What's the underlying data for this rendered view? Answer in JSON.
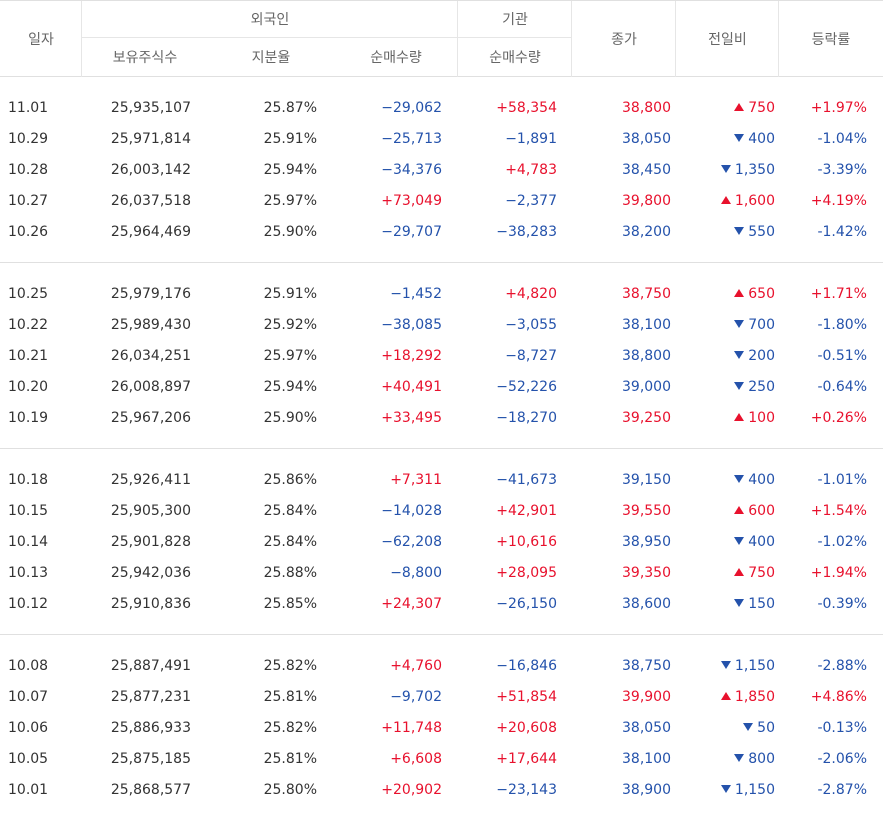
{
  "header": {
    "date": "일자",
    "foreign": "외국인",
    "institution": "기관",
    "holding": "보유주식수",
    "ratio": "지분율",
    "foreign_net": "순매수량",
    "inst_net": "순매수량",
    "close": "종가",
    "change": "전일비",
    "rate": "등락률"
  },
  "colors": {
    "up": "#e8112d",
    "down": "#2452ab"
  },
  "groups": [
    [
      {
        "date": "11.01",
        "hold": "25,935,107",
        "ratio": "25.87%",
        "fnet": "−29,062",
        "inst": "+58,354",
        "close": "38,800",
        "dir": "up",
        "chg": "750",
        "rate": "+1.97%"
      },
      {
        "date": "10.29",
        "hold": "25,971,814",
        "ratio": "25.91%",
        "fnet": "−25,713",
        "inst": "−1,891",
        "close": "38,050",
        "dir": "down",
        "chg": "400",
        "rate": "-1.04%"
      },
      {
        "date": "10.28",
        "hold": "26,003,142",
        "ratio": "25.94%",
        "fnet": "−34,376",
        "inst": "+4,783",
        "close": "38,450",
        "dir": "down",
        "chg": "1,350",
        "rate": "-3.39%"
      },
      {
        "date": "10.27",
        "hold": "26,037,518",
        "ratio": "25.97%",
        "fnet": "+73,049",
        "inst": "−2,377",
        "close": "39,800",
        "dir": "up",
        "chg": "1,600",
        "rate": "+4.19%"
      },
      {
        "date": "10.26",
        "hold": "25,964,469",
        "ratio": "25.90%",
        "fnet": "−29,707",
        "inst": "−38,283",
        "close": "38,200",
        "dir": "down",
        "chg": "550",
        "rate": "-1.42%"
      }
    ],
    [
      {
        "date": "10.25",
        "hold": "25,979,176",
        "ratio": "25.91%",
        "fnet": "−1,452",
        "inst": "+4,820",
        "close": "38,750",
        "dir": "up",
        "chg": "650",
        "rate": "+1.71%"
      },
      {
        "date": "10.22",
        "hold": "25,989,430",
        "ratio": "25.92%",
        "fnet": "−38,085",
        "inst": "−3,055",
        "close": "38,100",
        "dir": "down",
        "chg": "700",
        "rate": "-1.80%"
      },
      {
        "date": "10.21",
        "hold": "26,034,251",
        "ratio": "25.97%",
        "fnet": "+18,292",
        "inst": "−8,727",
        "close": "38,800",
        "dir": "down",
        "chg": "200",
        "rate": "-0.51%"
      },
      {
        "date": "10.20",
        "hold": "26,008,897",
        "ratio": "25.94%",
        "fnet": "+40,491",
        "inst": "−52,226",
        "close": "39,000",
        "dir": "down",
        "chg": "250",
        "rate": "-0.64%"
      },
      {
        "date": "10.19",
        "hold": "25,967,206",
        "ratio": "25.90%",
        "fnet": "+33,495",
        "inst": "−18,270",
        "close": "39,250",
        "dir": "up",
        "chg": "100",
        "rate": "+0.26%"
      }
    ],
    [
      {
        "date": "10.18",
        "hold": "25,926,411",
        "ratio": "25.86%",
        "fnet": "+7,311",
        "inst": "−41,673",
        "close": "39,150",
        "dir": "down",
        "chg": "400",
        "rate": "-1.01%"
      },
      {
        "date": "10.15",
        "hold": "25,905,300",
        "ratio": "25.84%",
        "fnet": "−14,028",
        "inst": "+42,901",
        "close": "39,550",
        "dir": "up",
        "chg": "600",
        "rate": "+1.54%"
      },
      {
        "date": "10.14",
        "hold": "25,901,828",
        "ratio": "25.84%",
        "fnet": "−62,208",
        "inst": "+10,616",
        "close": "38,950",
        "dir": "down",
        "chg": "400",
        "rate": "-1.02%"
      },
      {
        "date": "10.13",
        "hold": "25,942,036",
        "ratio": "25.88%",
        "fnet": "−8,800",
        "inst": "+28,095",
        "close": "39,350",
        "dir": "up",
        "chg": "750",
        "rate": "+1.94%"
      },
      {
        "date": "10.12",
        "hold": "25,910,836",
        "ratio": "25.85%",
        "fnet": "+24,307",
        "inst": "−26,150",
        "close": "38,600",
        "dir": "down",
        "chg": "150",
        "rate": "-0.39%"
      }
    ],
    [
      {
        "date": "10.08",
        "hold": "25,887,491",
        "ratio": "25.82%",
        "fnet": "+4,760",
        "inst": "−16,846",
        "close": "38,750",
        "dir": "down",
        "chg": "1,150",
        "rate": "-2.88%"
      },
      {
        "date": "10.07",
        "hold": "25,877,231",
        "ratio": "25.81%",
        "fnet": "−9,702",
        "inst": "+51,854",
        "close": "39,900",
        "dir": "up",
        "chg": "1,850",
        "rate": "+4.86%"
      },
      {
        "date": "10.06",
        "hold": "25,886,933",
        "ratio": "25.82%",
        "fnet": "+11,748",
        "inst": "+20,608",
        "close": "38,050",
        "dir": "down",
        "chg": "50",
        "rate": "-0.13%"
      },
      {
        "date": "10.05",
        "hold": "25,875,185",
        "ratio": "25.81%",
        "fnet": "+6,608",
        "inst": "+17,644",
        "close": "38,100",
        "dir": "down",
        "chg": "800",
        "rate": "-2.06%"
      },
      {
        "date": "10.01",
        "hold": "25,868,577",
        "ratio": "25.80%",
        "fnet": "+20,902",
        "inst": "−23,143",
        "close": "38,900",
        "dir": "down",
        "chg": "1,150",
        "rate": "-2.87%"
      }
    ]
  ]
}
